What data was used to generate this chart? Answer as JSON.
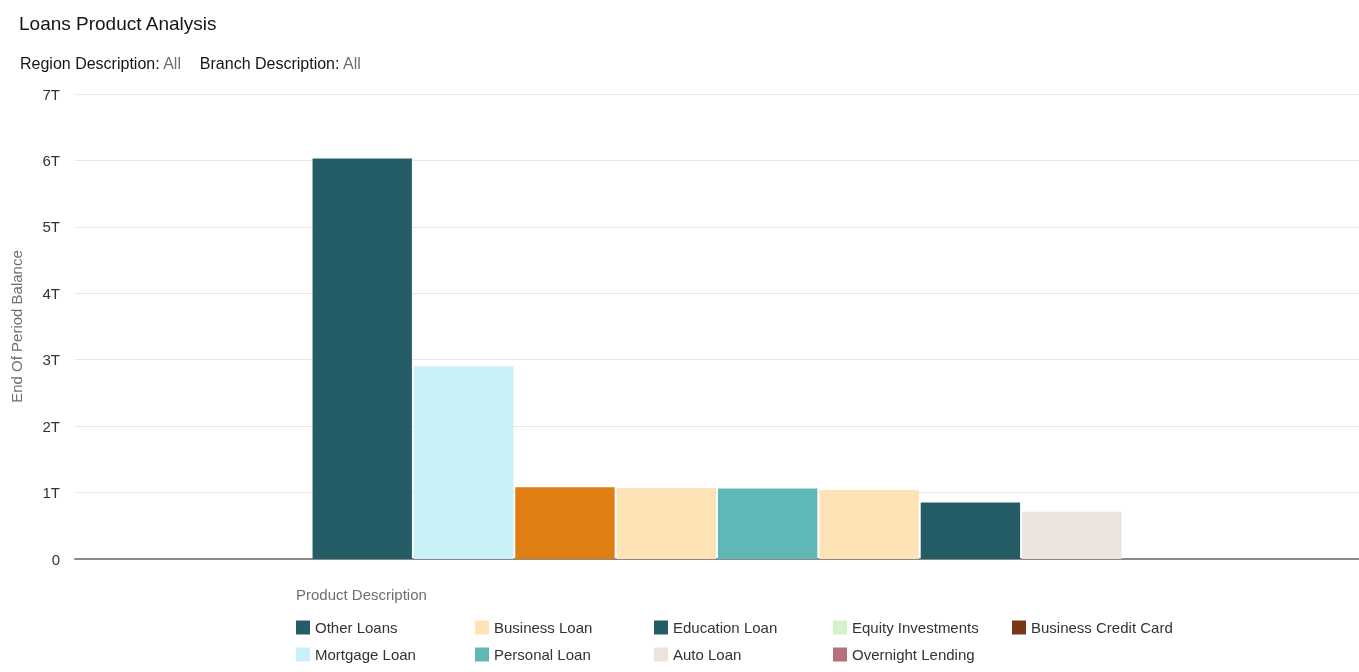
{
  "chart_data": {
    "type": "bar",
    "title": "Loans Product Analysis",
    "annotations": [
      "Region Description: All",
      "Branch Description: All"
    ],
    "ylabel": "End Of Period Balance",
    "legend_title": "Product Description",
    "categories": [
      null
    ],
    "series": [
      {
        "name": "Other Loans",
        "color": "#255d67",
        "values": [
          6030000000000
        ]
      },
      {
        "name": "Mortgage Loan",
        "color": "#c8f0f7",
        "values": [
          2900000000000
        ]
      },
      {
        "color": "#df7e12",
        "values": [
          1080000000000
        ]
      },
      {
        "name": "Business Loan",
        "color": "#fde3b6",
        "values": [
          1070000000000
        ]
      },
      {
        "name": "Personal Loan",
        "color": "#60b8b6",
        "values": [
          1060000000000
        ]
      },
      {
        "color": "#fde3b6",
        "values": [
          1040000000000
        ]
      },
      {
        "name": "Education Loan",
        "color": "#245c65",
        "values": [
          850000000000
        ]
      },
      {
        "name": "Auto Loan",
        "color": "#ece3dc",
        "values": [
          710000000000
        ]
      },
      {
        "name": "Equity Investments",
        "color": "#d6f0cc",
        "values": [
          null
        ]
      },
      {
        "name": "Overnight Lending",
        "color": "#b4717f",
        "values": [
          null
        ]
      },
      {
        "name": "Business Credit Card",
        "color": "#7a3718",
        "values": [
          null
        ]
      }
    ],
    "ylim": [
      0,
      7000000000000
    ],
    "yticks": [
      0,
      {
        "value": 1000000000000,
        "label": "1T"
      },
      {
        "value": 2000000000000,
        "label": "2T"
      },
      {
        "value": 3000000000000,
        "label": "3T"
      },
      {
        "value": 4000000000000,
        "label": "4T"
      },
      {
        "value": 5000000000000,
        "label": "5T"
      },
      {
        "value": 6000000000000,
        "label": "6T"
      },
      {
        "value": 7000000000000,
        "label": "7T"
      }
    ],
    "grid": "y",
    "legend": "bottom"
  }
}
